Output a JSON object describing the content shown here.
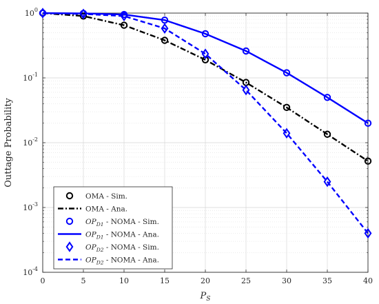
{
  "chart_data": {
    "type": "line",
    "title": "",
    "xlabel": "P_S",
    "ylabel": "Outtage Probability",
    "xlim": [
      0,
      40
    ],
    "ylim": [
      0.0001,
      1
    ],
    "yscale": "log",
    "grid": true,
    "legend_position": "bottom-left",
    "x": [
      0,
      5,
      10,
      15,
      20,
      25,
      30,
      35,
      40
    ],
    "x_ticks": [
      "0",
      "5",
      "10",
      "15",
      "20",
      "25",
      "30",
      "35",
      "40"
    ],
    "y_ticks": [
      {
        "value": 1,
        "base": "10",
        "exp": "0"
      },
      {
        "value": 0.1,
        "base": "10",
        "exp": "-1"
      },
      {
        "value": 0.01,
        "base": "10",
        "exp": "-2"
      },
      {
        "value": 0.001,
        "base": "10",
        "exp": "-3"
      },
      {
        "value": 0.0001,
        "base": "10",
        "exp": "-4"
      }
    ],
    "series": [
      {
        "name": "OMA - Sim.",
        "color": "#000000",
        "marker": "circle",
        "line": "none",
        "values": [
          1.0,
          0.9,
          0.65,
          0.38,
          0.19,
          0.085,
          0.035,
          0.0135,
          0.0052
        ]
      },
      {
        "name": "OMA - Ana.",
        "color": "#000000",
        "marker": "none",
        "line": "dashdot",
        "values": [
          1.0,
          0.9,
          0.65,
          0.38,
          0.19,
          0.085,
          0.035,
          0.0135,
          0.0052
        ]
      },
      {
        "name": "OP_D1 - NOMA - Sim.",
        "color": "#0000ff",
        "marker": "circle",
        "line": "none",
        "values": [
          1.0,
          0.99,
          0.95,
          0.78,
          0.48,
          0.26,
          0.12,
          0.05,
          0.02
        ]
      },
      {
        "name": "OP_D1 - NOMA - Ana.",
        "color": "#0000ff",
        "marker": "none",
        "line": "solid",
        "values": [
          1.0,
          0.99,
          0.95,
          0.78,
          0.48,
          0.26,
          0.12,
          0.05,
          0.02
        ]
      },
      {
        "name": "OP_D2 - NOMA - Sim.",
        "color": "#0000ff",
        "marker": "diamond",
        "line": "none",
        "values": [
          1.0,
          0.97,
          0.9,
          0.58,
          0.235,
          0.065,
          0.014,
          0.0025,
          0.0004
        ]
      },
      {
        "name": "OP_D2 - NOMA - Ana.",
        "color": "#0000ff",
        "marker": "none",
        "line": "dashed",
        "values": [
          1.0,
          0.97,
          0.9,
          0.58,
          0.235,
          0.065,
          0.014,
          0.0025,
          0.0004
        ]
      }
    ],
    "legend": [
      {
        "main": "OMA - Sim.",
        "sub": "",
        "rest": ""
      },
      {
        "main": "OMA - Ana.",
        "sub": "",
        "rest": ""
      },
      {
        "main": "OP",
        "sub": "D1",
        "rest": " - NOMA - Sim."
      },
      {
        "main": "OP",
        "sub": "D1",
        "rest": " - NOMA - Ana."
      },
      {
        "main": "OP",
        "sub": "D2",
        "rest": " - NOMA - Sim."
      },
      {
        "main": "OP",
        "sub": "D2",
        "rest": " - NOMA - Ana."
      }
    ],
    "xlabel_parts": {
      "main": "P",
      "sub": "S"
    }
  }
}
